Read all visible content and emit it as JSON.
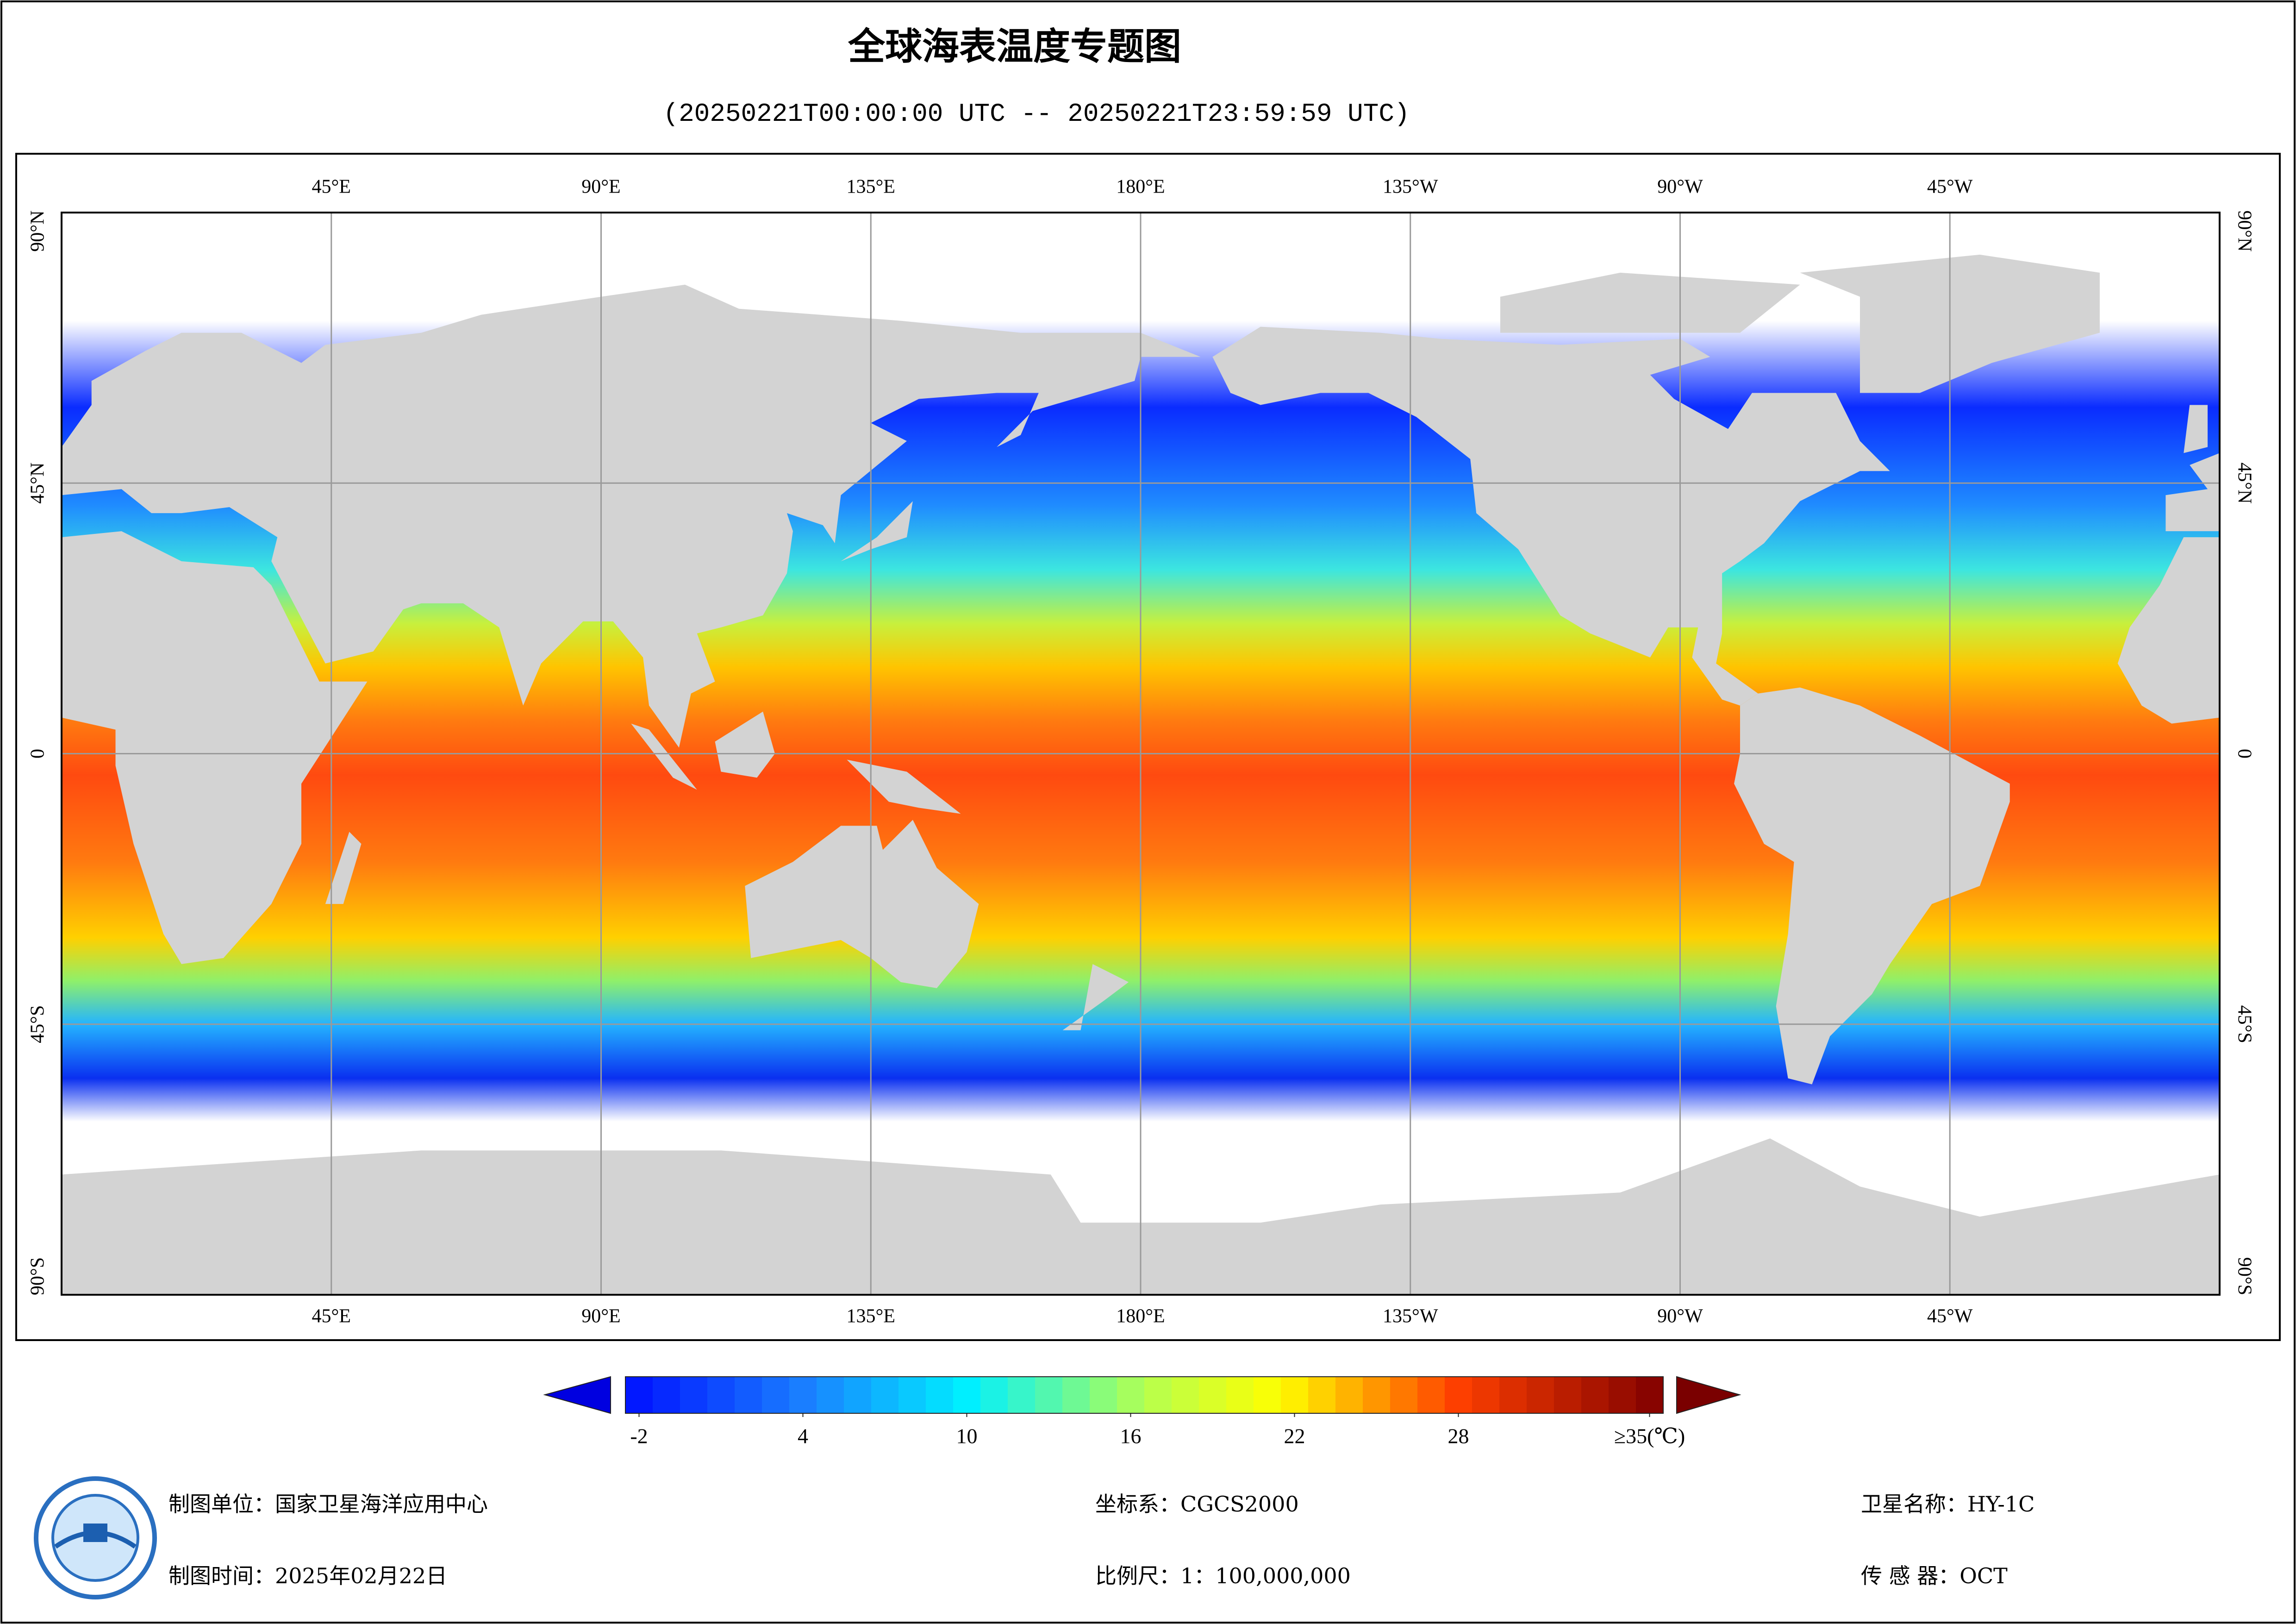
{
  "title": "全球海表温度专题图",
  "subtitle": "(20250221T00:00:00 UTC -- 20250221T23:59:59 UTC)",
  "map": {
    "type": "map",
    "lonlim": [
      0,
      360
    ],
    "latlim": [
      -90,
      90
    ],
    "grid": true,
    "lonticks": [
      {
        "value": 45,
        "label": "45°E"
      },
      {
        "value": 90,
        "label": "90°E"
      },
      {
        "value": 135,
        "label": "135°E"
      },
      {
        "value": 180,
        "label": "180°E"
      },
      {
        "value": 225,
        "label": "135°W"
      },
      {
        "value": 270,
        "label": "90°W"
      },
      {
        "value": 315,
        "label": "45°W"
      }
    ],
    "latticks": [
      {
        "value": -90,
        "label": "90°S"
      },
      {
        "value": -45,
        "label": "45°S"
      },
      0,
      {
        "value": 45,
        "label": "45°N"
      },
      {
        "value": 90,
        "label": "90°N"
      }
    ]
  },
  "colorbar": {
    "clim": [
      -2.5,
      35.5
    ],
    "ticks": [
      -2,
      4,
      10,
      16,
      22,
      28,
      {
        "value": 35,
        "label": "≥35(℃)"
      }
    ]
  },
  "footer": {
    "producer": "制图单位：国家卫星海洋应用中心",
    "date": "制图时间：2025年02月22日",
    "crs": "坐标系：CGCS2000",
    "scale": "比例尺：1：100,000,000",
    "satellite": "卫星名称：HY-1C",
    "sensor": "传 感 器：OCT"
  }
}
